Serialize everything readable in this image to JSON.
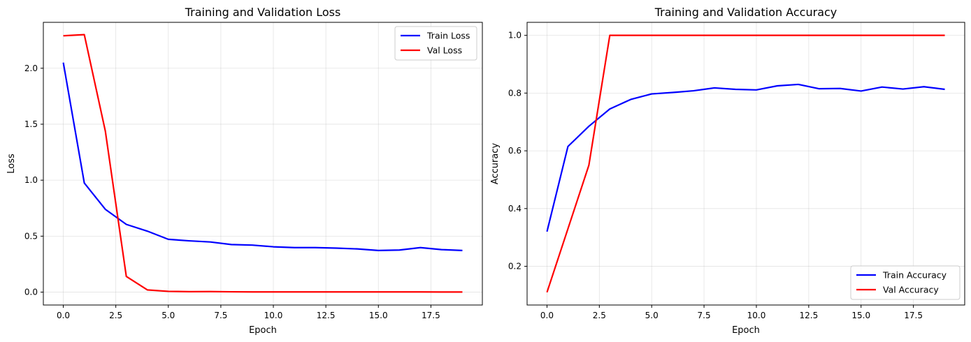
{
  "chart_data": [
    {
      "type": "line",
      "title": "Training and Validation Loss",
      "xlabel": "Epoch",
      "ylabel": "Loss",
      "xlim": [
        -0.95,
        19.95
      ],
      "ylim": [
        -0.115,
        2.41
      ],
      "xticks": [
        0,
        2.5,
        5,
        7.5,
        10,
        12.5,
        15,
        17.5
      ],
      "xtick_labels": [
        "0.0",
        "2.5",
        "5.0",
        "7.5",
        "10.0",
        "12.5",
        "15.0",
        "17.5"
      ],
      "yticks": [
        0,
        0.5,
        1,
        1.5,
        2
      ],
      "ytick_labels": [
        "0.0",
        "0.5",
        "1.0",
        "1.5",
        "2.0"
      ],
      "grid": true,
      "legend_position": "top-right",
      "x": [
        0,
        1,
        2,
        3,
        4,
        5,
        6,
        7,
        8,
        9,
        10,
        11,
        12,
        13,
        14,
        15,
        16,
        17,
        18,
        19
      ],
      "series": [
        {
          "name": "Train Loss",
          "color": "#0000ff",
          "values": [
            2.05,
            0.975,
            0.74,
            0.605,
            0.545,
            0.472,
            0.458,
            0.448,
            0.425,
            0.42,
            0.405,
            0.398,
            0.398,
            0.393,
            0.386,
            0.372,
            0.376,
            0.398,
            0.38,
            0.372
          ]
        },
        {
          "name": "Val Loss",
          "color": "#ff0000",
          "values": [
            2.29,
            2.3,
            1.44,
            0.14,
            0.02,
            0.007,
            0.004,
            0.005,
            0.003,
            0.002,
            0.002,
            0.002,
            0.002,
            0.002,
            0.002,
            0.002,
            0.002,
            0.002,
            0.001,
            0.001
          ]
        }
      ]
    },
    {
      "type": "line",
      "title": "Training and Validation Accuracy",
      "xlabel": "Epoch",
      "ylabel": "Accuracy",
      "xlim": [
        -0.95,
        19.95
      ],
      "ylim": [
        0.066,
        1.045
      ],
      "xticks": [
        0,
        2.5,
        5,
        7.5,
        10,
        12.5,
        15,
        17.5
      ],
      "xtick_labels": [
        "0.0",
        "2.5",
        "5.0",
        "7.5",
        "10.0",
        "12.5",
        "15.0",
        "17.5"
      ],
      "yticks": [
        0.2,
        0.4,
        0.6,
        0.8,
        1.0
      ],
      "ytick_labels": [
        "0.2",
        "0.4",
        "0.6",
        "0.8",
        "1.0"
      ],
      "grid": true,
      "legend_position": "bottom-right",
      "x": [
        0,
        1,
        2,
        3,
        4,
        5,
        6,
        7,
        8,
        9,
        10,
        11,
        12,
        13,
        14,
        15,
        16,
        17,
        18,
        19
      ],
      "series": [
        {
          "name": "Train Accuracy",
          "color": "#0000ff",
          "values": [
            0.32,
            0.615,
            0.685,
            0.745,
            0.778,
            0.797,
            0.802,
            0.808,
            0.818,
            0.813,
            0.811,
            0.825,
            0.83,
            0.815,
            0.816,
            0.807,
            0.821,
            0.814,
            0.822,
            0.813
          ]
        },
        {
          "name": "Val Accuracy",
          "color": "#ff0000",
          "values": [
            0.11,
            0.33,
            0.55,
            1.0,
            1.0,
            1.0,
            1.0,
            1.0,
            1.0,
            1.0,
            1.0,
            1.0,
            1.0,
            1.0,
            1.0,
            1.0,
            1.0,
            1.0,
            1.0,
            1.0
          ]
        }
      ]
    }
  ]
}
